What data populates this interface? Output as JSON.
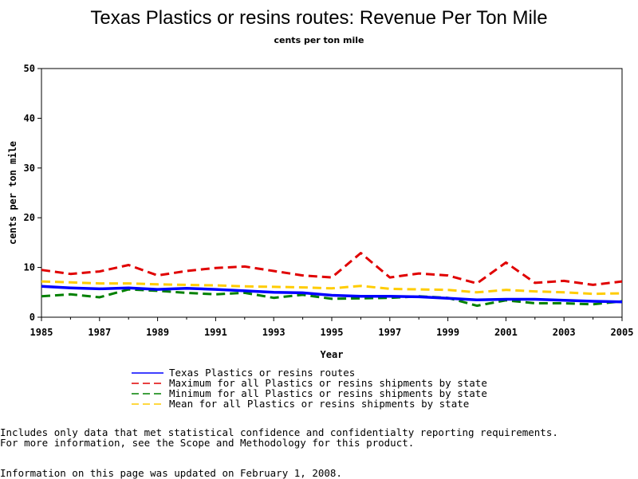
{
  "chart_data": {
    "type": "line",
    "title": "Texas Plastics or resins routes: Revenue Per Ton Mile",
    "subtitle": "cents per ton mile",
    "xlabel": "Year",
    "ylabel": "cents per ton mile",
    "xlim": [
      1985,
      2005
    ],
    "ylim": [
      0,
      50
    ],
    "xticks": [
      "1985",
      "1987",
      "1989",
      "1991",
      "1993",
      "1995",
      "1997",
      "1999",
      "2001",
      "2003",
      "2005"
    ],
    "yticks": [
      "0",
      "10",
      "20",
      "30",
      "40",
      "50"
    ],
    "x": [
      1985,
      1986,
      1987,
      1988,
      1989,
      1990,
      1991,
      1992,
      1993,
      1994,
      1995,
      1996,
      1997,
      1998,
      1999,
      2000,
      2001,
      2002,
      2003,
      2004,
      2005
    ],
    "series": [
      {
        "name": "Texas Plastics or resins routes",
        "color": "#0000ff",
        "style": "solid",
        "values": [
          6.2,
          5.9,
          5.7,
          5.9,
          5.6,
          5.8,
          5.6,
          5.3,
          5.0,
          4.9,
          4.4,
          4.2,
          4.2,
          4.1,
          3.8,
          3.5,
          3.6,
          3.6,
          3.4,
          3.2,
          3.1
        ]
      },
      {
        "name": "Maximum for all Plastics or resins shipments by state",
        "color": "#e00000",
        "style": "dashed",
        "values": [
          9.5,
          8.7,
          9.2,
          10.5,
          8.4,
          9.3,
          9.9,
          10.2,
          9.3,
          8.4,
          8.0,
          12.9,
          8.0,
          8.8,
          8.4,
          6.8,
          11.0,
          6.9,
          7.3,
          6.5,
          7.2
        ]
      },
      {
        "name": "Minimum for all Plastics or resins shipments by state",
        "color": "#008000",
        "style": "dashed",
        "values": [
          4.2,
          4.6,
          4.0,
          5.6,
          5.3,
          4.9,
          4.6,
          4.9,
          3.9,
          4.5,
          3.7,
          3.8,
          3.9,
          4.2,
          3.9,
          2.3,
          3.4,
          2.8,
          2.8,
          2.6,
          3.2
        ]
      },
      {
        "name": "Mean for all Plastics or resins shipments by state",
        "color": "#ffcc00",
        "style": "dashed",
        "values": [
          7.2,
          7.0,
          6.8,
          6.8,
          6.6,
          6.5,
          6.4,
          6.2,
          6.1,
          6.0,
          5.8,
          6.3,
          5.7,
          5.6,
          5.5,
          5.0,
          5.5,
          5.2,
          5.0,
          4.7,
          4.8
        ]
      }
    ]
  },
  "notes": {
    "line1": "Includes only data that met statistical confidence and confidentialty reporting requirements.",
    "line2": "For more information, see the Scope and Methodology for this product.",
    "updated": "Information on this page was updated on February 1, 2008."
  }
}
